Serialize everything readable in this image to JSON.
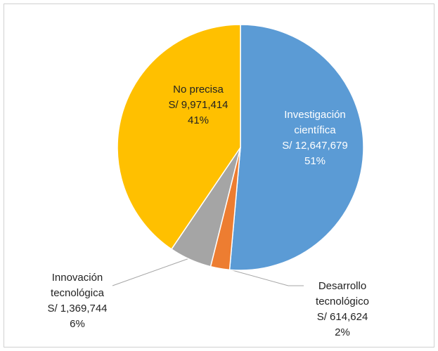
{
  "chart_data": {
    "type": "pie",
    "categories": [
      "Investigación científica",
      "Desarrollo tecnológico",
      "Innovación tecnológica",
      "No precisa"
    ],
    "values": [
      12647679,
      614624,
      1369744,
      9971414
    ],
    "value_labels": [
      "S/ 12,647,679",
      "S/ 614,624",
      "S/ 1,369,744",
      "S/ 9,971,414"
    ],
    "percentages": [
      51,
      2,
      6,
      41
    ],
    "percentage_labels": [
      "51%",
      "2%",
      "6%",
      "41%"
    ],
    "colors": [
      "#5b9bd5",
      "#ed7d31",
      "#a5a5a5",
      "#ffc000"
    ]
  }
}
